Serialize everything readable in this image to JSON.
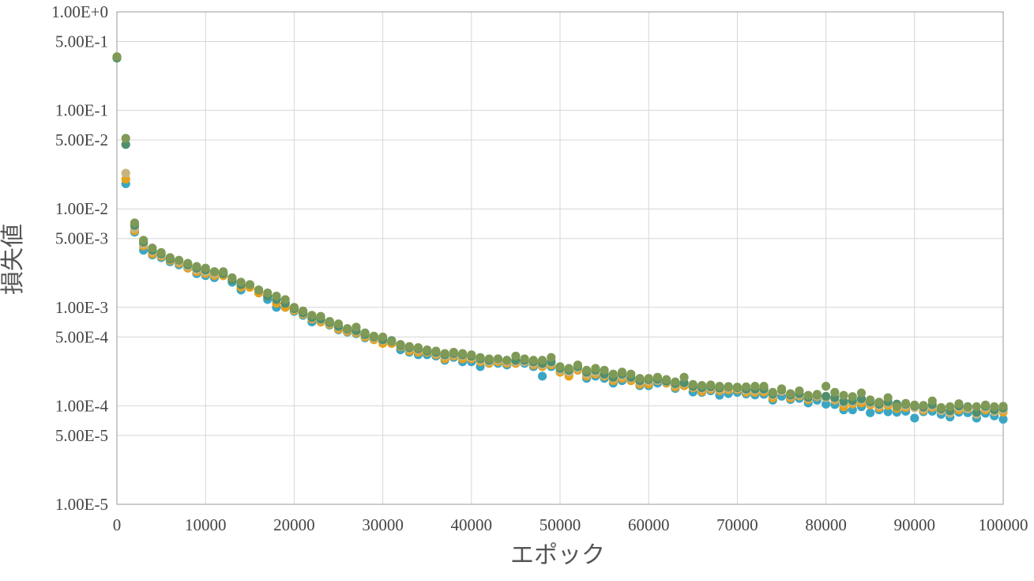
{
  "chart_data": {
    "type": "scatter",
    "xlabel": "エポック",
    "ylabel": "損失値",
    "xlim": [
      0,
      100000
    ],
    "ylim": [
      1e-05,
      1
    ],
    "yscale": "log",
    "grid": true,
    "legend": "none",
    "x_ticks": [
      "0",
      "10000",
      "20000",
      "30000",
      "40000",
      "50000",
      "60000",
      "70000",
      "80000",
      "90000",
      "100000"
    ],
    "y_ticks": [
      {
        "value": 1,
        "label": "1.00E+0"
      },
      {
        "value": 0.5,
        "label": "5.00E-1"
      },
      {
        "value": 0.1,
        "label": "1.00E-1"
      },
      {
        "value": 0.05,
        "label": "5.00E-2"
      },
      {
        "value": 0.01,
        "label": "1.00E-2"
      },
      {
        "value": 0.005,
        "label": "5.00E-3"
      },
      {
        "value": 0.001,
        "label": "1.00E-3"
      },
      {
        "value": 0.0005,
        "label": "5.00E-4"
      },
      {
        "value": 0.0001,
        "label": "1.00E-4"
      },
      {
        "value": 5e-05,
        "label": "5.00E-5"
      },
      {
        "value": 1e-05,
        "label": "1.00E-5"
      }
    ],
    "x": [
      0,
      1000,
      2000,
      3000,
      4000,
      5000,
      6000,
      7000,
      8000,
      9000,
      10000,
      11000,
      12000,
      13000,
      14000,
      15000,
      16000,
      17000,
      18000,
      19000,
      20000,
      21000,
      22000,
      23000,
      24000,
      25000,
      26000,
      27000,
      28000,
      29000,
      30000,
      31000,
      32000,
      33000,
      34000,
      35000,
      36000,
      37000,
      38000,
      39000,
      40000,
      41000,
      42000,
      43000,
      44000,
      45000,
      46000,
      47000,
      48000,
      49000,
      50000,
      51000,
      52000,
      53000,
      54000,
      55000,
      56000,
      57000,
      58000,
      59000,
      60000,
      61000,
      62000,
      63000,
      64000,
      65000,
      66000,
      67000,
      68000,
      69000,
      70000,
      71000,
      72000,
      73000,
      74000,
      75000,
      76000,
      77000,
      78000,
      79000,
      80000,
      81000,
      82000,
      83000,
      84000,
      85000,
      86000,
      87000,
      88000,
      89000,
      90000,
      91000,
      92000,
      93000,
      94000,
      95000,
      96000,
      97000,
      98000,
      99000,
      100000
    ],
    "series": [
      {
        "color": "#3aa6c4",
        "values": [
          0.34,
          0.018,
          0.0058,
          0.0038,
          0.0034,
          0.0032,
          0.0029,
          0.0027,
          0.0025,
          0.0022,
          0.0021,
          0.002,
          0.0021,
          0.0018,
          0.0015,
          0.0016,
          0.0014,
          0.0012,
          0.001,
          0.001,
          0.00091,
          0.00083,
          0.00071,
          0.00071,
          0.00066,
          0.00059,
          0.00056,
          0.00054,
          0.00049,
          0.00047,
          0.00044,
          0.00043,
          0.00037,
          0.00035,
          0.00033,
          0.00033,
          0.00032,
          0.00029,
          0.00031,
          0.00028,
          0.00028,
          0.00025,
          0.00027,
          0.00027,
          0.00026,
          0.00027,
          0.00027,
          0.00025,
          0.0002,
          0.00025,
          0.00022,
          0.00021,
          0.00023,
          0.00019,
          0.0002,
          0.00019,
          0.00017,
          0.00018,
          0.00018,
          0.00016,
          0.00016,
          0.00017,
          0.00017,
          0.00015,
          0.00016,
          0.000138,
          0.000137,
          0.000142,
          0.000128,
          0.000133,
          0.000137,
          0.000132,
          0.000129,
          0.000131,
          0.000114,
          0.000125,
          0.000116,
          0.000119,
          0.000107,
          0.000114,
          0.000104,
          0.000103,
          9.1e-05,
          9.1e-05,
          9.8e-05,
          8.5e-05,
          9.1e-05,
          8.7e-05,
          8.6e-05,
          8.8e-05,
          7.5e-05,
          8.7e-05,
          8.8e-05,
          8.2e-05,
          7.7e-05,
          8.6e-05,
          8.5e-05,
          7.5e-05,
          8.4e-05,
          7.9e-05,
          7.3e-05
        ]
      },
      {
        "color": "#e8a11c",
        "values": [
          0.35,
          0.02,
          0.006,
          0.0042,
          0.0035,
          0.0033,
          0.003,
          0.0028,
          0.0025,
          0.0023,
          0.0022,
          0.0021,
          0.0021,
          0.0019,
          0.0016,
          0.0016,
          0.0014,
          0.0013,
          0.0011,
          0.001,
          0.00093,
          0.00085,
          0.00076,
          0.00071,
          0.00067,
          0.0006,
          0.00057,
          0.00055,
          0.0005,
          0.00047,
          0.00043,
          0.00043,
          0.0004,
          0.00036,
          0.00035,
          0.00035,
          0.00033,
          0.0003,
          0.00032,
          0.0003,
          0.0003,
          0.00028,
          0.00027,
          0.00028,
          0.00027,
          0.00027,
          0.00028,
          0.00026,
          0.00025,
          0.00026,
          0.00022,
          0.0002,
          0.00023,
          0.0002,
          0.00021,
          0.0002,
          0.00018,
          0.00019,
          0.00018,
          0.000165,
          0.000166,
          0.00018,
          0.00017,
          0.000155,
          0.00016,
          0.000152,
          0.00014,
          0.000147,
          0.000142,
          0.000145,
          0.000146,
          0.000137,
          0.000137,
          0.000138,
          0.00012,
          0.00014,
          0.00012,
          0.000126,
          0.000115,
          0.000124,
          0.000124,
          0.000114,
          9.8e-05,
          0.000104,
          0.000107,
          0.000102,
          9.6e-05,
          0.000101,
          9.4e-05,
          9.6e-05,
          9.6e-05,
          9e-05,
          9.6e-05,
          9.3e-05,
          8.8e-05,
          9.1e-05,
          9.3e-05,
          8.4e-05,
          9.1e-05,
          8.8e-05,
          8.6e-05
        ]
      },
      {
        "color": "#c8b47e",
        "values": [
          0.35,
          0.023,
          0.0063,
          0.0044,
          0.0037,
          0.0034,
          0.0031,
          0.0029,
          0.0026,
          0.0024,
          0.0023,
          0.0022,
          0.0022,
          0.0019,
          0.0017,
          0.0017,
          0.0015,
          0.0013,
          0.0012,
          0.0011,
          0.00096,
          0.00087,
          0.00078,
          0.00074,
          0.00069,
          0.00063,
          0.00059,
          0.00057,
          0.00052,
          0.00049,
          0.00046,
          0.00045,
          0.00041,
          0.00038,
          0.00037,
          0.00036,
          0.00034,
          0.00032,
          0.00033,
          0.00032,
          0.00031,
          0.00029,
          0.00028,
          0.00029,
          0.00028,
          0.00028,
          0.00028,
          0.00027,
          0.00026,
          0.00027,
          0.00023,
          0.00022,
          0.00024,
          0.00021,
          0.00022,
          0.000205,
          0.00019,
          0.0002,
          0.00019,
          0.000175,
          0.000178,
          0.000182,
          0.000175,
          0.000163,
          0.000168,
          0.000155,
          0.000149,
          0.000152,
          0.000147,
          0.000151,
          0.00015,
          0.000143,
          0.000143,
          0.000144,
          0.000128,
          0.000142,
          0.000126,
          0.000129,
          0.000119,
          0.000126,
          0.000121,
          0.000117,
          0.000107,
          0.000109,
          0.000114,
          0.000106,
          0.0001,
          0.000106,
          0.0001,
          0.0001,
          9.6e-05,
          9.3e-05,
          9.9e-05,
          8.9e-05,
          8.4e-05,
          9.6e-05,
          9.4e-05,
          8.2e-05,
          9.5e-05,
          8.7e-05,
          9.1e-05
        ]
      },
      {
        "color": "#4e8f6e",
        "values": [
          0.34,
          0.045,
          0.0068,
          0.0046,
          0.0038,
          0.0035,
          0.0031,
          0.003,
          0.0027,
          0.0025,
          0.0024,
          0.0023,
          0.0022,
          0.0019,
          0.0017,
          0.0017,
          0.0015,
          0.0013,
          0.0012,
          0.0011,
          0.00097,
          0.00088,
          0.00079,
          0.00076,
          0.0007,
          0.00064,
          0.0006,
          0.00058,
          0.00053,
          0.0005,
          0.00047,
          0.00046,
          0.00041,
          0.00039,
          0.00038,
          0.00036,
          0.00035,
          0.00033,
          0.00034,
          0.00033,
          0.00032,
          0.0003,
          0.00029,
          0.0003,
          0.00029,
          0.00029,
          0.00029,
          0.00028,
          0.00027,
          0.00028,
          0.00024,
          0.00023,
          0.00025,
          0.00022,
          0.00023,
          0.00021,
          0.000195,
          0.00021,
          0.000195,
          0.00018,
          0.000185,
          0.000186,
          0.000178,
          0.000168,
          0.000172,
          0.000158,
          0.000153,
          0.000157,
          0.000152,
          0.000155,
          0.000153,
          0.000148,
          0.000148,
          0.000148,
          0.000132,
          0.000146,
          0.000129,
          0.000133,
          0.000122,
          0.000129,
          0.000125,
          0.000121,
          0.000111,
          0.000113,
          0.000118,
          0.00011,
          0.000104,
          0.00011,
          0.000104,
          0.000104,
          0.0001,
          9.7e-05,
          0.000103,
          9.3e-05,
          8.9e-05,
          0.0001,
          9.8e-05,
          8.6e-05,
          9.9e-05,
          9.1e-05,
          9.5e-05
        ]
      },
      {
        "color": "#7f9a56",
        "values": [
          0.35,
          0.052,
          0.0072,
          0.0048,
          0.004,
          0.0036,
          0.0032,
          0.003,
          0.0028,
          0.0026,
          0.0025,
          0.0023,
          0.0023,
          0.002,
          0.0018,
          0.0017,
          0.0015,
          0.0014,
          0.0013,
          0.0012,
          0.001,
          0.00092,
          0.00083,
          0.00081,
          0.00072,
          0.00068,
          0.00061,
          0.00063,
          0.00055,
          0.00051,
          0.0005,
          0.00045,
          0.00042,
          0.0004,
          0.00039,
          0.00037,
          0.00036,
          0.00034,
          0.00035,
          0.00034,
          0.00033,
          0.00031,
          0.0003,
          0.0003,
          0.00029,
          0.00032,
          0.0003,
          0.00029,
          0.00029,
          0.00031,
          0.00025,
          0.00024,
          0.00026,
          0.00023,
          0.00024,
          0.00023,
          0.00021,
          0.00022,
          0.00021,
          0.00019,
          0.00019,
          0.000195,
          0.000185,
          0.000175,
          0.000195,
          0.000165,
          0.000161,
          0.000163,
          0.000158,
          0.000157,
          0.000155,
          0.000156,
          0.000158,
          0.000158,
          0.000137,
          0.000149,
          0.000133,
          0.000142,
          0.000128,
          0.000131,
          0.000158,
          0.000137,
          0.000128,
          0.000124,
          0.000135,
          0.000115,
          0.000109,
          0.000121,
          9.8e-05,
          0.000106,
          0.000102,
          0.000101,
          0.000112,
          9.6e-05,
          9.8e-05,
          0.000105,
          9.7e-05,
          9.8e-05,
          0.000102,
          9.8e-05,
          9.9e-05
        ]
      }
    ]
  }
}
